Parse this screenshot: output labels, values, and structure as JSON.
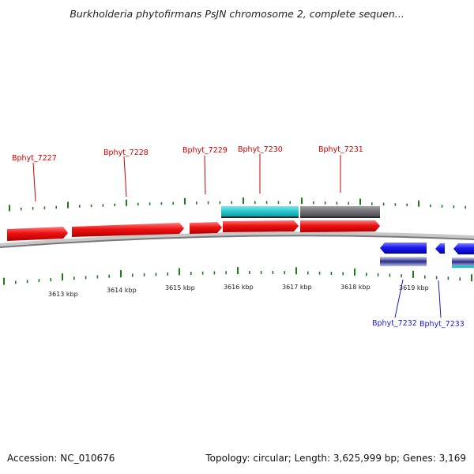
{
  "title": "Burkholderia phytofirmans PsJN chromosome 2, complete sequen...",
  "footer": {
    "accession": "Accession: NC_010676",
    "topology": "Topology: circular; Length: 3,625,999 bp; Genes: 3,169"
  },
  "colors": {
    "forward_gene": "#ee1111",
    "reverse_gene": "#1a1aee",
    "cds_cyan": "#22c4cc",
    "cds_gray": "#6e6e72",
    "tick_green": "#1a7d1a",
    "backbone": "#8c8c8c",
    "label_red": "#cc0000",
    "label_blue": "#1a1acc"
  },
  "ruler_labels": [
    "3613 kbp",
    "3614 kbp",
    "3615 kbp",
    "3616 kbp",
    "3617 kbp",
    "3618 kbp",
    "3619 kbp"
  ],
  "genes_forward": [
    "Bphyt_7227",
    "Bphyt_7228",
    "Bphyt_7229",
    "Bphyt_7230",
    "Bphyt_7231"
  ],
  "genes_reverse": [
    "Bphyt_7232",
    "Bphyt_7233"
  ]
}
